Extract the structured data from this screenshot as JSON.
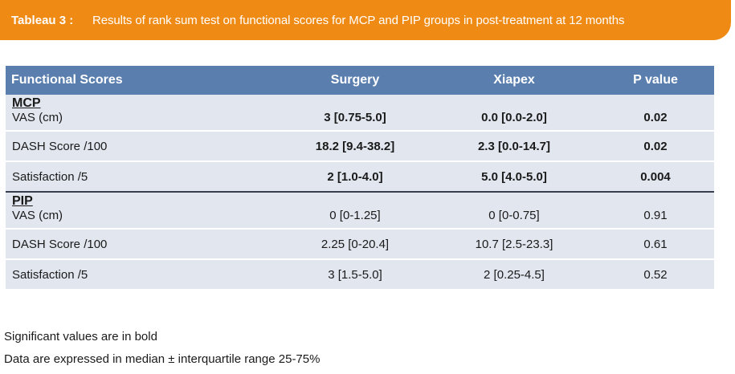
{
  "caption": {
    "label": "Tableau 3 :",
    "title": "Results of rank sum test on functional scores for MCP and PIP groups in post-treatment at 12 months"
  },
  "table": {
    "headers": [
      "Functional Scores",
      "Surgery",
      "Xiapex",
      "P value"
    ],
    "groups": [
      {
        "name": "MCP",
        "rows": [
          {
            "label": "VAS (cm)",
            "surgery": "3 [0.75-5.0]",
            "xiapex": "0.0 [0.0-2.0]",
            "p": "0.02",
            "significant": true
          },
          {
            "label": "DASH Score /100",
            "surgery": "18.2 [9.4-38.2]",
            "xiapex": "2.3 [0.0-14.7]",
            "p": "0.02",
            "significant": true
          },
          {
            "label": "Satisfaction /5",
            "surgery": "2 [1.0-4.0]",
            "xiapex": "5.0 [4.0-5.0]",
            "p": "0.004",
            "significant": true
          }
        ]
      },
      {
        "name": "PIP",
        "rows": [
          {
            "label": "VAS (cm)",
            "surgery": "0 [0-1.25]",
            "xiapex": "0 [0-0.75]",
            "p": "0.91",
            "significant": false
          },
          {
            "label": "DASH Score /100",
            "surgery": "2.25 [0-20.4]",
            "xiapex": "10.7 [2.5-23.3]",
            "p": "0.61",
            "significant": false
          },
          {
            "label": "Satisfaction /5",
            "surgery": "3 [1.5-5.0]",
            "xiapex": "2 [0.25-4.5]",
            "p": "0.52",
            "significant": false
          }
        ]
      }
    ]
  },
  "notes": [
    "Significant values are in bold",
    "Data are expressed in median ± interquartile range 25-75%"
  ],
  "colors": {
    "caption_bg": "#ef8a14",
    "header_bg": "#5a7faf",
    "row_shade": "#e2e6ef",
    "group_rule": "#3a3f50"
  }
}
